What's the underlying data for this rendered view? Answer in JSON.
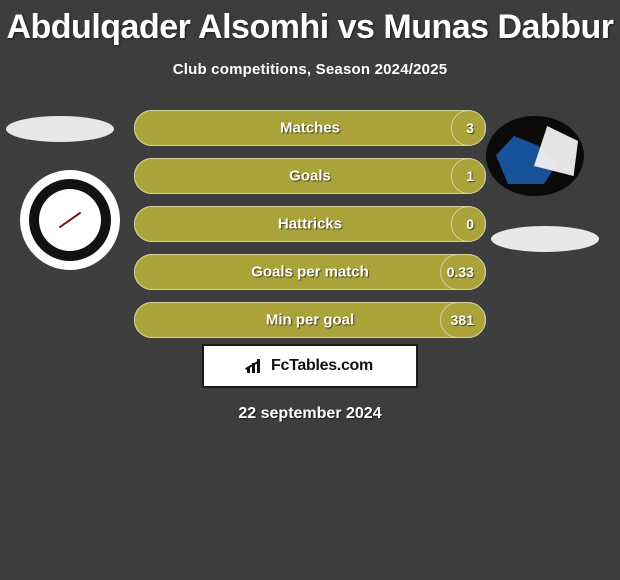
{
  "title": "Abdulqader Alsomhi vs Munas Dabbur",
  "subtitle": "Club competitions, Season 2024/2025",
  "date": "22 september 2024",
  "brand": {
    "text": "FcTables.com"
  },
  "colors": {
    "bar_fill": "#a9a33a",
    "bar_outline": "#ffffff",
    "background": "#3d3d3d",
    "text": "#ffffff"
  },
  "stats": {
    "rows": [
      {
        "label": "Matches",
        "left": "",
        "right": "3",
        "left_pct": 99,
        "right_pct": 10
      },
      {
        "label": "Goals",
        "left": "",
        "right": "1",
        "left_pct": 99,
        "right_pct": 10
      },
      {
        "label": "Hattricks",
        "left": "",
        "right": "0",
        "left_pct": 99,
        "right_pct": 10
      },
      {
        "label": "Goals per match",
        "left": "",
        "right": "0.33",
        "left_pct": 99,
        "right_pct": 13
      },
      {
        "label": "Min per goal",
        "left": "",
        "right": "381",
        "left_pct": 99,
        "right_pct": 13
      }
    ]
  }
}
